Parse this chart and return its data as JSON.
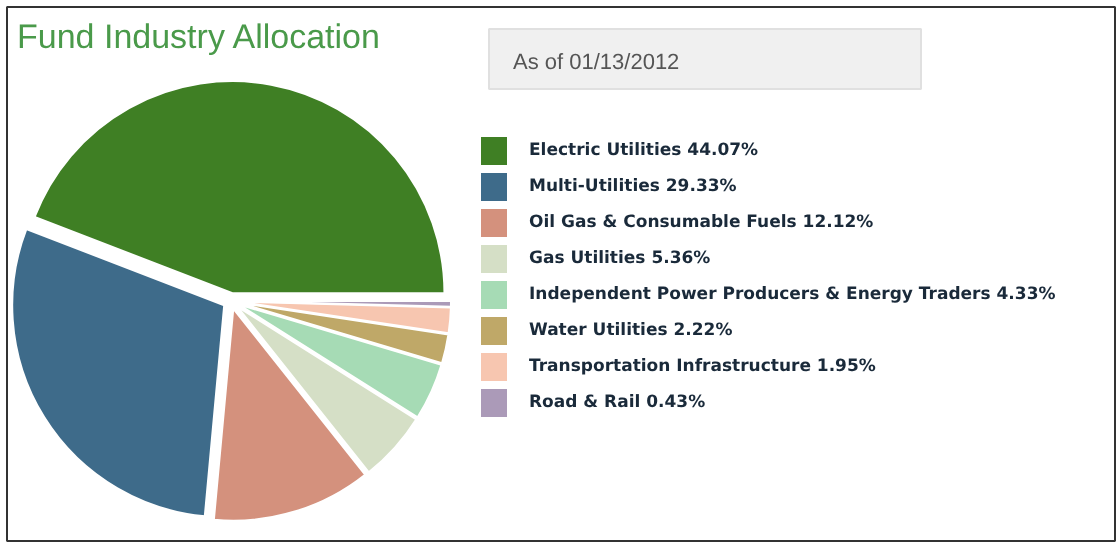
{
  "chart_data": {
    "type": "pie",
    "title": "Fund Industry Allocation",
    "subtitle": "As of  01/13/2012",
    "categories": [
      "Electric Utilities",
      "Multi-Utilities",
      "Oil Gas & Consumable Fuels",
      "Gas Utilities",
      "Independent Power Producers & Energy Traders",
      "Water Utilities",
      "Transportation Infrastructure",
      "Road & Rail"
    ],
    "values": [
      44.07,
      29.33,
      12.12,
      5.36,
      4.33,
      2.22,
      1.95,
      0.43
    ],
    "value_labels": [
      "44.07%",
      "29.33%",
      "12.12%",
      "5.36%",
      "4.33%",
      "2.22%",
      "1.95%",
      "0.43%"
    ],
    "colors": [
      "#3f7f24",
      "#3e6b8a",
      "#d4917d",
      "#d5dfc6",
      "#a6dbb5",
      "#bfa868",
      "#f7c6b0",
      "#ab9ab8"
    ],
    "legend": "right"
  }
}
